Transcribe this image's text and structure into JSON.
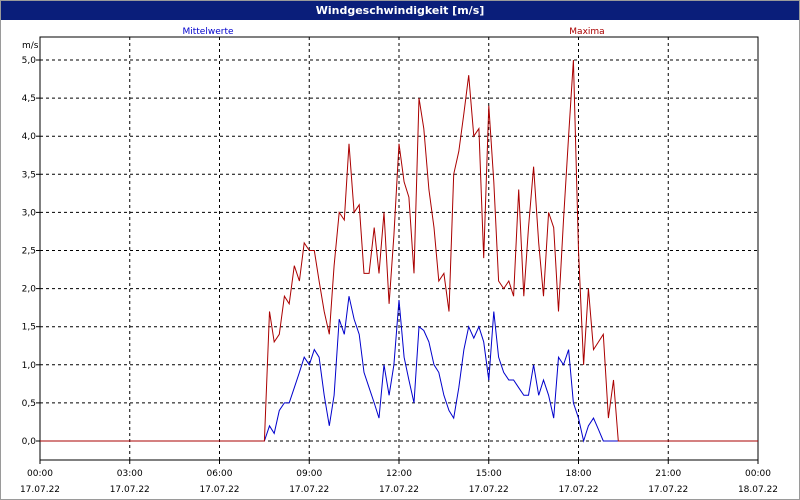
{
  "window": {
    "title": "Windgeschwindigkeit [m/s]"
  },
  "chart_data": {
    "type": "line",
    "title": "Windgeschwindigkeit [m/s]",
    "ylabel": "m/s",
    "ylim": [
      0,
      5.0
    ],
    "xlim": [
      0,
      24
    ],
    "grid": true,
    "legend_placement": "top",
    "y_ticks": [
      {
        "v": 0.0,
        "label": "0,0"
      },
      {
        "v": 0.5,
        "label": "0,5"
      },
      {
        "v": 1.0,
        "label": "1,0"
      },
      {
        "v": 1.5,
        "label": "1,5"
      },
      {
        "v": 2.0,
        "label": "2,0"
      },
      {
        "v": 2.5,
        "label": "2,5"
      },
      {
        "v": 3.0,
        "label": "3,0"
      },
      {
        "v": 3.5,
        "label": "3,5"
      },
      {
        "v": 4.0,
        "label": "4,0"
      },
      {
        "v": 4.5,
        "label": "4,5"
      },
      {
        "v": 5.0,
        "label": "5,0"
      }
    ],
    "x_ticks": [
      {
        "h": 0,
        "time": "00:00",
        "date": "17.07.22"
      },
      {
        "h": 3,
        "time": "03:00",
        "date": "17.07.22"
      },
      {
        "h": 6,
        "time": "06:00",
        "date": "17.07.22"
      },
      {
        "h": 9,
        "time": "09:00",
        "date": "17.07.22"
      },
      {
        "h": 12,
        "time": "12:00",
        "date": "17.07.22"
      },
      {
        "h": 15,
        "time": "15:00",
        "date": "17.07.22"
      },
      {
        "h": 18,
        "time": "18:00",
        "date": "17.07.22"
      },
      {
        "h": 21,
        "time": "21:00",
        "date": "17.07.22"
      },
      {
        "h": 24,
        "time": "00:00",
        "date": "18.07.22"
      }
    ],
    "series": [
      {
        "name": "Mittelwerte",
        "color": "#0000cc",
        "points": [
          [
            0,
            0
          ],
          [
            7.5,
            0
          ],
          [
            7.67,
            0.2
          ],
          [
            7.83,
            0.1
          ],
          [
            8,
            0.4
          ],
          [
            8.17,
            0.5
          ],
          [
            8.33,
            0.5
          ],
          [
            8.5,
            0.7
          ],
          [
            8.67,
            0.9
          ],
          [
            8.83,
            1.1
          ],
          [
            9,
            1.0
          ],
          [
            9.17,
            1.2
          ],
          [
            9.33,
            1.1
          ],
          [
            9.5,
            0.6
          ],
          [
            9.67,
            0.2
          ],
          [
            9.83,
            0.6
          ],
          [
            10,
            1.6
          ],
          [
            10.17,
            1.4
          ],
          [
            10.33,
            1.9
          ],
          [
            10.5,
            1.6
          ],
          [
            10.67,
            1.4
          ],
          [
            10.83,
            0.9
          ],
          [
            11,
            0.7
          ],
          [
            11.17,
            0.5
          ],
          [
            11.33,
            0.3
          ],
          [
            11.5,
            1.0
          ],
          [
            11.67,
            0.6
          ],
          [
            11.83,
            1.0
          ],
          [
            12,
            1.85
          ],
          [
            12.17,
            1.1
          ],
          [
            12.33,
            0.8
          ],
          [
            12.5,
            0.5
          ],
          [
            12.67,
            1.5
          ],
          [
            12.83,
            1.45
          ],
          [
            13,
            1.3
          ],
          [
            13.17,
            1.0
          ],
          [
            13.33,
            0.9
          ],
          [
            13.5,
            0.6
          ],
          [
            13.67,
            0.4
          ],
          [
            13.83,
            0.3
          ],
          [
            14,
            0.7
          ],
          [
            14.17,
            1.2
          ],
          [
            14.33,
            1.5
          ],
          [
            14.5,
            1.35
          ],
          [
            14.67,
            1.5
          ],
          [
            14.83,
            1.3
          ],
          [
            15,
            0.8
          ],
          [
            15.17,
            1.7
          ],
          [
            15.33,
            1.1
          ],
          [
            15.5,
            0.9
          ],
          [
            15.67,
            0.8
          ],
          [
            15.83,
            0.8
          ],
          [
            16,
            0.7
          ],
          [
            16.17,
            0.6
          ],
          [
            16.33,
            0.6
          ],
          [
            16.5,
            1.0
          ],
          [
            16.67,
            0.6
          ],
          [
            16.83,
            0.8
          ],
          [
            17,
            0.6
          ],
          [
            17.17,
            0.3
          ],
          [
            17.33,
            1.1
          ],
          [
            17.5,
            1.0
          ],
          [
            17.67,
            1.2
          ],
          [
            17.83,
            0.5
          ],
          [
            18,
            0.3
          ],
          [
            18.17,
            0.0
          ],
          [
            18.33,
            0.2
          ],
          [
            18.5,
            0.3
          ],
          [
            18.67,
            0.15
          ],
          [
            18.83,
            0.0
          ],
          [
            19,
            0.0
          ],
          [
            24,
            0.0
          ]
        ]
      },
      {
        "name": "Maxima",
        "color": "#aa0000",
        "points": [
          [
            0,
            0
          ],
          [
            7.5,
            0
          ],
          [
            7.67,
            1.7
          ],
          [
            7.83,
            1.3
          ],
          [
            8,
            1.4
          ],
          [
            8.17,
            1.9
          ],
          [
            8.33,
            1.8
          ],
          [
            8.5,
            2.3
          ],
          [
            8.67,
            2.1
          ],
          [
            8.83,
            2.6
          ],
          [
            9,
            2.5
          ],
          [
            9.17,
            2.5
          ],
          [
            9.33,
            2.1
          ],
          [
            9.5,
            1.7
          ],
          [
            9.67,
            1.4
          ],
          [
            9.83,
            2.3
          ],
          [
            10,
            3.0
          ],
          [
            10.17,
            2.9
          ],
          [
            10.33,
            3.9
          ],
          [
            10.5,
            3.0
          ],
          [
            10.67,
            3.1
          ],
          [
            10.83,
            2.2
          ],
          [
            11,
            2.2
          ],
          [
            11.17,
            2.8
          ],
          [
            11.33,
            2.2
          ],
          [
            11.5,
            3.0
          ],
          [
            11.67,
            1.8
          ],
          [
            11.83,
            2.7
          ],
          [
            12,
            3.9
          ],
          [
            12.17,
            3.4
          ],
          [
            12.33,
            3.2
          ],
          [
            12.5,
            2.2
          ],
          [
            12.67,
            4.5
          ],
          [
            12.83,
            4.1
          ],
          [
            13,
            3.3
          ],
          [
            13.17,
            2.8
          ],
          [
            13.33,
            2.1
          ],
          [
            13.5,
            2.2
          ],
          [
            13.67,
            1.7
          ],
          [
            13.83,
            3.5
          ],
          [
            14,
            3.8
          ],
          [
            14.17,
            4.3
          ],
          [
            14.33,
            4.8
          ],
          [
            14.5,
            4.0
          ],
          [
            14.67,
            4.1
          ],
          [
            14.83,
            2.4
          ],
          [
            15,
            4.4
          ],
          [
            15.17,
            3.4
          ],
          [
            15.33,
            2.1
          ],
          [
            15.5,
            2.0
          ],
          [
            15.67,
            2.1
          ],
          [
            15.83,
            1.9
          ],
          [
            16,
            3.3
          ],
          [
            16.17,
            1.9
          ],
          [
            16.33,
            2.8
          ],
          [
            16.5,
            3.6
          ],
          [
            16.67,
            2.6
          ],
          [
            16.83,
            1.9
          ],
          [
            17,
            3.0
          ],
          [
            17.17,
            2.8
          ],
          [
            17.33,
            1.7
          ],
          [
            17.5,
            2.9
          ],
          [
            17.67,
            4.0
          ],
          [
            17.83,
            5.0
          ],
          [
            18,
            2.5
          ],
          [
            18.17,
            1.0
          ],
          [
            18.33,
            2.0
          ],
          [
            18.5,
            1.2
          ],
          [
            18.67,
            1.3
          ],
          [
            18.83,
            1.4
          ],
          [
            19,
            0.3
          ],
          [
            19.17,
            0.8
          ],
          [
            19.33,
            0.0
          ],
          [
            24,
            0.0
          ]
        ]
      }
    ]
  }
}
